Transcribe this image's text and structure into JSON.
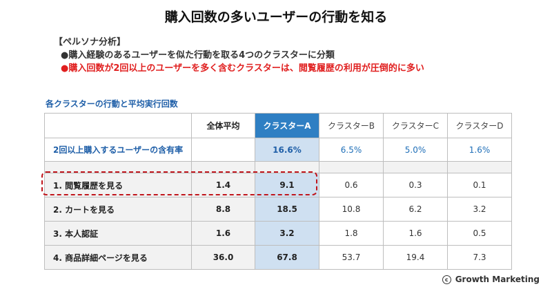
{
  "title": "購入回数の多いユーザーの行動を知る",
  "persona": {
    "heading": "【ペルソナ分析】",
    "bullet1": "●購入経験のあるユーザーを似た行動を取る4つのクラスターに分類",
    "bullet2": "●購入回数が2回以上のユーザーを多く含むクラスターは、閲覧履歴の利用が圧倒的に多い"
  },
  "table_title": "各クラスターの行動と平均実行回数",
  "table": {
    "columns": [
      "全体平均",
      "クラスターA",
      "クラスターB",
      "クラスターC",
      "クラスターD"
    ],
    "rate_row": {
      "label": "2回以上購入するユーザーの含有率",
      "values": [
        "",
        "16.6%",
        "6.5%",
        "5.0%",
        "1.6%"
      ]
    },
    "rows": [
      {
        "label": "1. 閲覧履歴を見る",
        "values": [
          "1.4",
          "9.1",
          "0.6",
          "0.3",
          "0.1"
        ]
      },
      {
        "label": "2. カートを見る",
        "values": [
          "8.8",
          "18.5",
          "10.8",
          "6.2",
          "3.2"
        ]
      },
      {
        "label": "3. 本人認証",
        "values": [
          "1.6",
          "3.2",
          "1.8",
          "1.6",
          "0.5"
        ]
      },
      {
        "label": "4. 商品詳細ページを見る",
        "values": [
          "36.0",
          "67.8",
          "53.7",
          "19.4",
          "7.3"
        ]
      }
    ]
  },
  "colors": {
    "accent_blue": "#2f7fc3",
    "highlight_column": "#cfe0f1",
    "alert_red": "#e01e1e"
  },
  "logo": {
    "mark": "c",
    "text": "Growth Marketing"
  }
}
